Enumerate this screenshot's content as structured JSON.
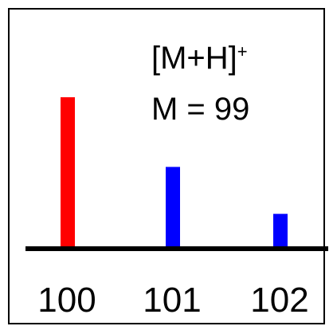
{
  "chart_data": {
    "type": "bar",
    "categories": [
      "100",
      "101",
      "102"
    ],
    "values": [
      100,
      54,
      23
    ],
    "colors": [
      "#ff0000",
      "#0000ff",
      "#0000ff"
    ],
    "ylim": [
      0,
      100
    ],
    "grid": false,
    "legend": "none",
    "annotation": {
      "ion": "[M+H]",
      "charge": "+",
      "mass": "M = 99"
    }
  }
}
